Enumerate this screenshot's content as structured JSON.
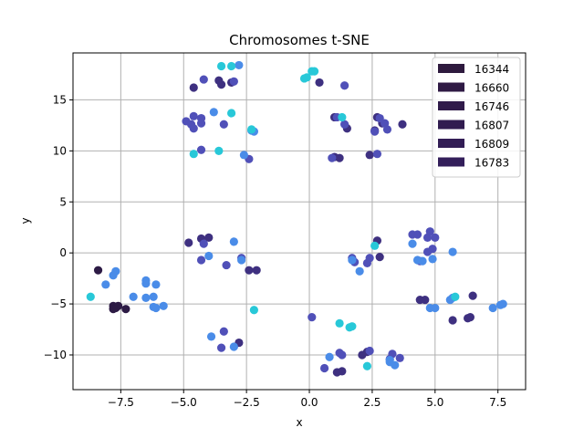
{
  "chart_data": {
    "type": "scatter",
    "title": "Chromosomes t-SNE",
    "xlabel": "x",
    "ylabel": "y",
    "xlim": [
      -9.4,
      8.6
    ],
    "ylim": [
      -13.4,
      19.6
    ],
    "xticks": [
      -7.5,
      -5.0,
      -2.5,
      0.0,
      2.5,
      5.0,
      7.5
    ],
    "xtick_labels": [
      "−7.5",
      "−5.0",
      "−2.5",
      "0.0",
      "2.5",
      "5.0",
      "7.5"
    ],
    "yticks": [
      -10,
      -5,
      0,
      5,
      10,
      15
    ],
    "ytick_labels": [
      "−10",
      "−5",
      "0",
      "5",
      "10",
      "15"
    ],
    "grid": true,
    "legend_position": "top-right",
    "legend": [
      {
        "label": "16344",
        "color": "#2e1a3e"
      },
      {
        "label": "16660",
        "color": "#2f1a44"
      },
      {
        "label": "16746",
        "color": "#301b4a"
      },
      {
        "label": "16807",
        "color": "#311c50"
      },
      {
        "label": "16809",
        "color": "#321d55"
      },
      {
        "label": "16783",
        "color": "#331e5a"
      }
    ],
    "series": [
      {
        "name": "dark",
        "color": "#2d1b45",
        "points": [
          [
            -8.4,
            -1.7
          ],
          [
            -7.8,
            -5.2
          ],
          [
            -7.7,
            -5.4
          ],
          [
            -7.6,
            -5.2
          ],
          [
            -7.3,
            -5.5
          ],
          [
            -7.8,
            -5.5
          ]
        ]
      },
      {
        "name": "purple",
        "color": "#3e3080",
        "points": [
          [
            -4.8,
            1.0
          ],
          [
            -4.3,
            1.4
          ],
          [
            -4.0,
            1.5
          ],
          [
            -2.8,
            -8.8
          ],
          [
            -2.4,
            -1.7
          ],
          [
            -2.1,
            -1.7
          ],
          [
            -4.6,
            16.2
          ],
          [
            -3.5,
            16.5
          ],
          [
            -3.1,
            16.7
          ],
          [
            -3.6,
            16.9
          ],
          [
            1.0,
            9.4
          ],
          [
            1.2,
            9.3
          ],
          [
            1.5,
            12.2
          ],
          [
            1.0,
            13.3
          ],
          [
            0.4,
            16.7
          ],
          [
            2.7,
            13.3
          ],
          [
            2.9,
            12.7
          ],
          [
            2.6,
            12.0
          ],
          [
            2.4,
            9.6
          ],
          [
            3.7,
            12.6
          ],
          [
            2.7,
            1.2
          ],
          [
            2.8,
            -0.4
          ],
          [
            4.4,
            -4.6
          ],
          [
            4.6,
            -4.6
          ],
          [
            5.7,
            -6.6
          ],
          [
            6.3,
            -6.4
          ],
          [
            6.5,
            -4.2
          ],
          [
            6.4,
            -6.3
          ],
          [
            1.1,
            -11.7
          ],
          [
            2.3,
            -9.7
          ],
          [
            2.1,
            -10.0
          ],
          [
            1.3,
            -11.6
          ]
        ]
      },
      {
        "name": "indigo",
        "color": "#5050b8",
        "points": [
          [
            -4.3,
            -0.7
          ],
          [
            -3.3,
            -1.2
          ],
          [
            -2.7,
            -0.5
          ],
          [
            -4.2,
            0.9
          ],
          [
            -3.4,
            -7.7
          ],
          [
            -3.5,
            -9.3
          ],
          [
            -4.9,
            12.9
          ],
          [
            -4.7,
            12.6
          ],
          [
            -4.6,
            12.2
          ],
          [
            -4.3,
            12.7
          ],
          [
            -4.3,
            13.2
          ],
          [
            -3.4,
            12.6
          ],
          [
            -4.6,
            13.4
          ],
          [
            -4.3,
            10.1
          ],
          [
            -4.2,
            17.0
          ],
          [
            -3.0,
            16.8
          ],
          [
            -2.4,
            9.2
          ],
          [
            1.1,
            13.3
          ],
          [
            1.4,
            12.6
          ],
          [
            1.4,
            16.4
          ],
          [
            0.9,
            9.3
          ],
          [
            2.6,
            11.9
          ],
          [
            3.1,
            12.1
          ],
          [
            3.0,
            12.7
          ],
          [
            2.8,
            13.2
          ],
          [
            2.7,
            9.7
          ],
          [
            1.7,
            -0.5
          ],
          [
            1.8,
            -0.9
          ],
          [
            2.3,
            -1.0
          ],
          [
            2.4,
            -0.5
          ],
          [
            4.1,
            1.8
          ],
          [
            4.3,
            1.8
          ],
          [
            4.7,
            1.5
          ],
          [
            4.8,
            2.1
          ],
          [
            5.0,
            1.5
          ],
          [
            4.7,
            0.1
          ],
          [
            4.9,
            0.4
          ],
          [
            4.4,
            -0.8
          ],
          [
            0.1,
            -6.3
          ],
          [
            0.6,
            -11.3
          ],
          [
            1.3,
            -10.0
          ],
          [
            1.2,
            -9.8
          ],
          [
            2.4,
            -9.6
          ],
          [
            3.3,
            -9.9
          ],
          [
            3.6,
            -10.3
          ],
          [
            3.2,
            -10.4
          ]
        ]
      },
      {
        "name": "blue",
        "color": "#4a8ce8",
        "points": [
          [
            -7.7,
            -1.8
          ],
          [
            -7.8,
            -2.2
          ],
          [
            -8.1,
            -3.1
          ],
          [
            -7.0,
            -4.3
          ],
          [
            -6.5,
            -4.4
          ],
          [
            -6.5,
            -3.0
          ],
          [
            -6.5,
            -2.7
          ],
          [
            -6.2,
            -4.3
          ],
          [
            -6.2,
            -5.3
          ],
          [
            -6.1,
            -3.1
          ],
          [
            -5.8,
            -5.2
          ],
          [
            -6.1,
            -5.4
          ],
          [
            -4.0,
            -0.3
          ],
          [
            -2.7,
            -0.7
          ],
          [
            -3.0,
            1.1
          ],
          [
            -3.9,
            -8.2
          ],
          [
            -3.0,
            -9.2
          ],
          [
            -2.8,
            18.4
          ],
          [
            -3.8,
            13.8
          ],
          [
            -2.6,
            9.6
          ],
          [
            -2.3,
            12.0
          ],
          [
            -2.2,
            11.9
          ],
          [
            1.7,
            -0.7
          ],
          [
            2.0,
            -1.8
          ],
          [
            4.1,
            0.9
          ],
          [
            4.5,
            -0.8
          ],
          [
            4.3,
            -0.7
          ],
          [
            4.9,
            -0.6
          ],
          [
            4.8,
            -5.4
          ],
          [
            5.0,
            -5.4
          ],
          [
            5.7,
            0.1
          ],
          [
            5.6,
            -4.6
          ],
          [
            5.7,
            -4.4
          ],
          [
            7.3,
            -5.4
          ],
          [
            7.6,
            -5.1
          ],
          [
            7.7,
            -5.0
          ],
          [
            0.8,
            -10.2
          ],
          [
            3.2,
            -10.7
          ],
          [
            3.4,
            -11.0
          ],
          [
            3.2,
            -10.5
          ]
        ]
      },
      {
        "name": "cyan",
        "color": "#28c8d8",
        "points": [
          [
            -8.7,
            -4.3
          ],
          [
            -2.2,
            -5.6
          ],
          [
            -3.5,
            18.3
          ],
          [
            -3.1,
            18.3
          ],
          [
            -3.1,
            13.7
          ],
          [
            -3.6,
            10.0
          ],
          [
            -4.6,
            9.7
          ],
          [
            -2.3,
            12.1
          ],
          [
            -0.2,
            17.1
          ],
          [
            -0.1,
            17.2
          ],
          [
            0.1,
            17.8
          ],
          [
            0.2,
            17.8
          ],
          [
            1.3,
            13.3
          ],
          [
            2.6,
            0.7
          ],
          [
            1.2,
            -6.9
          ],
          [
            1.6,
            -7.3
          ],
          [
            1.7,
            -7.2
          ],
          [
            5.8,
            -4.3
          ],
          [
            2.3,
            -11.1
          ]
        ]
      }
    ]
  }
}
